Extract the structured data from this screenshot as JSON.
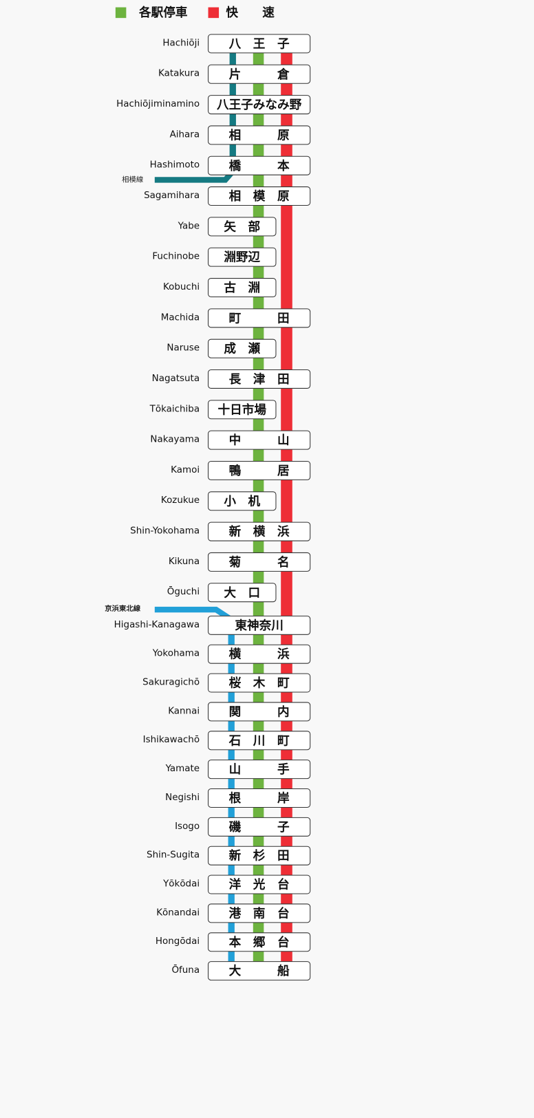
{
  "legend": [
    {
      "label": "各駅停車",
      "color": "#6db33f"
    },
    {
      "label": "快　　速",
      "color": "#ee2e36"
    }
  ],
  "branches": [
    {
      "name": "相模線",
      "color": "#157a82",
      "from": "Hachiōji",
      "to": "Hashimoto",
      "bold": false
    },
    {
      "name": "京浜東北線",
      "color": "#22a0d8",
      "from": "Higashi-Kanagawa",
      "to": "Ōfuna",
      "bold": true
    }
  ],
  "stations": [
    {
      "en": "Hachiōji",
      "ja": "八　王　子",
      "rapid": true
    },
    {
      "en": "Katakura",
      "ja": "片　　　倉",
      "rapid": true
    },
    {
      "en": "Hachiōjiminamino",
      "ja": "八王子みなみ野",
      "rapid": true
    },
    {
      "en": "Aihara",
      "ja": "相　　　原",
      "rapid": true
    },
    {
      "en": "Hashimoto",
      "ja": "橋　　　本",
      "rapid": true
    },
    {
      "en": "Sagamihara",
      "ja": "相　模　原",
      "rapid": true
    },
    {
      "en": "Yabe",
      "ja": "矢　部",
      "rapid": false
    },
    {
      "en": "Fuchinobe",
      "ja": "淵野辺",
      "rapid": false
    },
    {
      "en": "Kobuchi",
      "ja": "古　淵",
      "rapid": false
    },
    {
      "en": "Machida",
      "ja": "町　　　田",
      "rapid": true
    },
    {
      "en": "Naruse",
      "ja": "成　瀬",
      "rapid": false
    },
    {
      "en": "Nagatsuta",
      "ja": "長　津　田",
      "rapid": true
    },
    {
      "en": "Tōkaichiba",
      "ja": "十日市場",
      "rapid": false
    },
    {
      "en": "Nakayama",
      "ja": "中　　　山",
      "rapid": true
    },
    {
      "en": "Kamoi",
      "ja": "鴨　　　居",
      "rapid": true
    },
    {
      "en": "Kozukue",
      "ja": "小　机",
      "rapid": false
    },
    {
      "en": "Shin-Yokohama",
      "ja": "新　横　浜",
      "rapid": true
    },
    {
      "en": "Kikuna",
      "ja": "菊　　　名",
      "rapid": true
    },
    {
      "en": "Ōguchi",
      "ja": "大　口",
      "rapid": false
    },
    {
      "en": "Higashi-Kanagawa",
      "ja": "東神奈川",
      "rapid": true
    },
    {
      "en": "Yokohama",
      "ja": "横　　　浜",
      "rapid": true
    },
    {
      "en": "Sakuragichō",
      "ja": "桜　木　町",
      "rapid": true
    },
    {
      "en": "Kannai",
      "ja": "関　　　内",
      "rapid": true
    },
    {
      "en": "Ishikawachō",
      "ja": "石　川　町",
      "rapid": true
    },
    {
      "en": "Yamate",
      "ja": "山　　　手",
      "rapid": true
    },
    {
      "en": "Negishi",
      "ja": "根　　　岸",
      "rapid": true
    },
    {
      "en": "Isogo",
      "ja": "磯　　　子",
      "rapid": true
    },
    {
      "en": "Shin-Sugita",
      "ja": "新　杉　田",
      "rapid": true
    },
    {
      "en": "Yōkōdai",
      "ja": "洋　光　台",
      "rapid": true
    },
    {
      "en": "Kōnandai",
      "ja": "港　南　台",
      "rapid": true
    },
    {
      "en": "Hongōdai",
      "ja": "本　郷　台",
      "rapid": true
    },
    {
      "en": "Ōfuna",
      "ja": "大　　　船",
      "rapid": true
    }
  ]
}
